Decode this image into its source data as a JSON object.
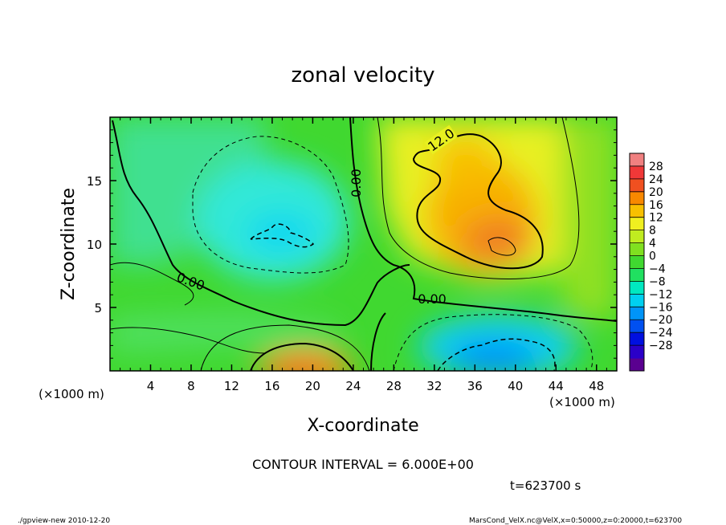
{
  "chart_data": {
    "type": "heatmap",
    "title": "zonal velocity",
    "xlabel": "X-coordinate",
    "ylabel": "Z-coordinate",
    "x_unit": "(×1000 m)",
    "xlim": [
      0,
      50
    ],
    "ylim": [
      0,
      20
    ],
    "x_ticks": [
      "4",
      "8",
      "12",
      "16",
      "20",
      "24",
      "28",
      "32",
      "36",
      "40",
      "44",
      "48"
    ],
    "x_tick_values": [
      4,
      8,
      12,
      16,
      20,
      24,
      28,
      32,
      36,
      40,
      44,
      48
    ],
    "y_ticks": [
      "5",
      "10",
      "15"
    ],
    "y_tick_values": [
      5,
      10,
      15
    ],
    "contour_interval_text": "CONTOUR INTERVAL = 6.000E+00",
    "contour_labels": [
      "12.0",
      "0.00",
      "0.00",
      "0.00"
    ],
    "colorbar": {
      "levels": [
        -28,
        -24,
        -20,
        -16,
        -12,
        -8,
        -4,
        0,
        4,
        8,
        12,
        16,
        20,
        24,
        28
      ],
      "labels": [
        "28",
        "24",
        "20",
        "16",
        "12",
        "8",
        "4",
        "0",
        "−4",
        "−8",
        "−12",
        "−16",
        "−20",
        "−24",
        "−28"
      ],
      "colors": [
        "#5a0090",
        "#2a00c8",
        "#0010e0",
        "#0050f0",
        "#0094f8",
        "#00d0f0",
        "#00e8c0",
        "#20e060",
        "#40d830",
        "#80e020",
        "#c0ec20",
        "#f0f020",
        "#f8c000",
        "#f88800",
        "#f05020",
        "#f03838",
        "#f08080"
      ]
    },
    "values_estimate": [
      {
        "x": 36,
        "z": 11,
        "u": 16
      },
      {
        "x": 38,
        "z": 10,
        "u": 20
      },
      {
        "x": 20,
        "z": 1,
        "u": 18
      },
      {
        "x": 16,
        "z": 11,
        "u": -12
      },
      {
        "x": 38,
        "z": 1.5,
        "u": -16
      },
      {
        "x": 30,
        "z": 8,
        "u": 4
      }
    ]
  },
  "footer": {
    "time": "t=623700 s",
    "left": "./gpview-new  2010-12-20",
    "right": "MarsCond_VelX.nc@VelX,x=0:50000,z=0:20000,t=623700"
  }
}
